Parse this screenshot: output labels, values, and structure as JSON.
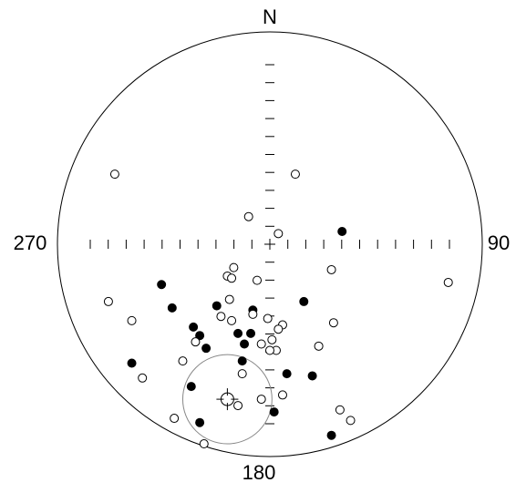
{
  "chart_data": {
    "type": "stereonet",
    "labels": {
      "north": "N",
      "east": "90",
      "south": "180",
      "west": "270"
    },
    "xlim": [
      -1,
      1
    ],
    "ylim": [
      -1,
      1
    ],
    "series": [
      {
        "color": "#000000",
        "x": [
          0.34,
          -0.51,
          -0.46,
          -0.25,
          -0.08,
          0.16,
          -0.36,
          -0.33,
          -0.3,
          -0.15,
          -0.09,
          -0.12,
          -0.65,
          -0.13,
          0.08,
          0.2,
          -0.37,
          0.02,
          -0.33,
          0.29
        ],
        "values": [
          0.06,
          -0.19,
          -0.3,
          -0.29,
          -0.31,
          -0.27,
          -0.39,
          -0.43,
          -0.49,
          -0.42,
          -0.42,
          -0.47,
          -0.56,
          -0.55,
          -0.61,
          -0.62,
          -0.67,
          -0.79,
          -0.84,
          -0.9
        ]
      },
      {
        "color": "#ffffff",
        "x": [
          -0.73,
          0.12,
          -0.1,
          0.04,
          -0.17,
          -0.2,
          -0.18,
          -0.06,
          0.29,
          0.84,
          -0.76,
          -0.19,
          -0.08,
          -0.23,
          -0.18,
          -0.01,
          0.06,
          0.04,
          -0.65,
          0.3,
          -0.35,
          -0.04,
          0.01,
          0.03,
          0.0,
          0.23,
          -0.41,
          -0.6,
          -0.13,
          -0.04,
          0.06,
          -0.15,
          -0.45,
          0.33,
          0.38,
          -0.31
        ],
        "values": [
          0.33,
          0.33,
          0.13,
          0.05,
          -0.11,
          -0.15,
          -0.16,
          -0.17,
          -0.12,
          -0.18,
          -0.27,
          -0.26,
          -0.33,
          -0.34,
          -0.36,
          -0.35,
          -0.38,
          -0.4,
          -0.36,
          -0.37,
          -0.46,
          -0.47,
          -0.45,
          -0.5,
          -0.5,
          -0.48,
          -0.55,
          -0.63,
          -0.61,
          -0.73,
          -0.71,
          -0.76,
          -0.82,
          -0.78,
          -0.83,
          -0.94
        ]
      }
    ],
    "mean": {
      "x": -0.2,
      "y": -0.73,
      "alpha95_radius": 0.21,
      "color": "#888888"
    }
  }
}
